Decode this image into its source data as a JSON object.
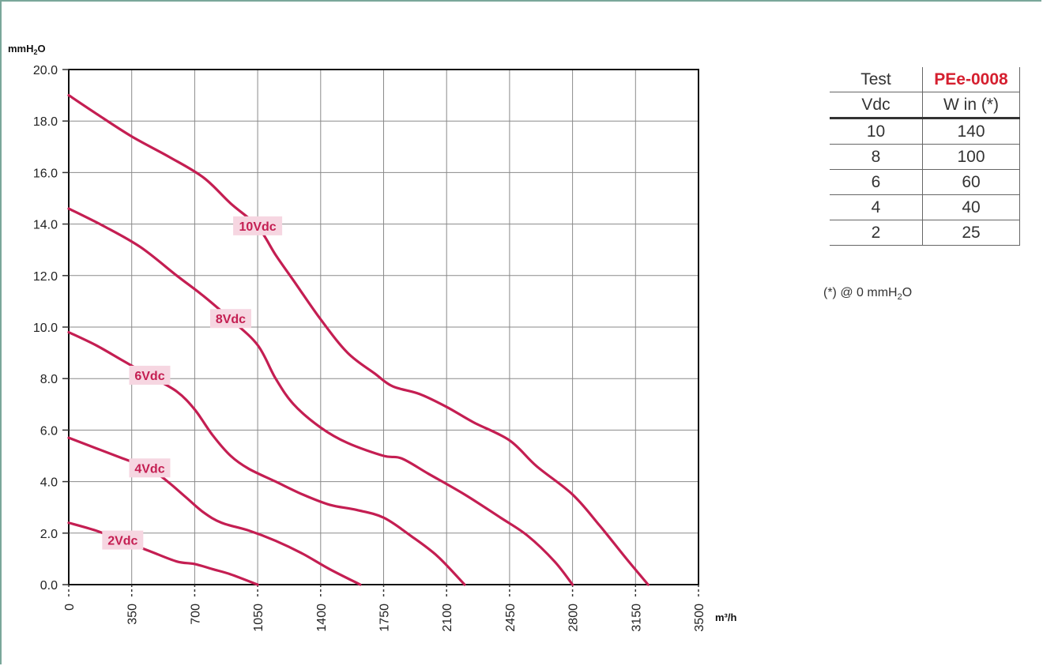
{
  "chart_data": {
    "type": "line",
    "ylabel": "mmH₂O",
    "xlabel": "m³/h",
    "xlim": [
      0,
      3500
    ],
    "ylim": [
      0,
      20
    ],
    "x_ticks": [
      "0",
      "350",
      "700",
      "1050",
      "1400",
      "1750",
      "2100",
      "2450",
      "2800",
      "3150",
      "3500"
    ],
    "y_ticks": [
      "0.0",
      "2.0",
      "4.0",
      "6.0",
      "8.0",
      "10.0",
      "12.0",
      "14.0",
      "16.0",
      "18.0",
      "20.0"
    ],
    "grid": true,
    "line_color": "#c41e52",
    "label_bg_color": "#f6d6e1",
    "series": [
      {
        "name": "10Vdc",
        "points": [
          [
            0,
            19.0
          ],
          [
            150,
            18.3
          ],
          [
            350,
            17.4
          ],
          [
            560,
            16.6
          ],
          [
            750,
            15.8
          ],
          [
            900,
            14.8
          ],
          [
            1050,
            13.9
          ],
          [
            1150,
            12.8
          ],
          [
            1250,
            11.8
          ],
          [
            1400,
            10.3
          ],
          [
            1550,
            9.0
          ],
          [
            1700,
            8.2
          ],
          [
            1800,
            7.7
          ],
          [
            1950,
            7.4
          ],
          [
            2100,
            6.9
          ],
          [
            2250,
            6.3
          ],
          [
            2450,
            5.6
          ],
          [
            2600,
            4.6
          ],
          [
            2800,
            3.5
          ],
          [
            2950,
            2.3
          ],
          [
            3100,
            1.0
          ],
          [
            3220,
            0.0
          ]
        ]
      },
      {
        "name": "8Vdc",
        "points": [
          [
            0,
            14.6
          ],
          [
            200,
            13.9
          ],
          [
            400,
            13.1
          ],
          [
            600,
            12.0
          ],
          [
            750,
            11.2
          ],
          [
            900,
            10.3
          ],
          [
            1050,
            9.3
          ],
          [
            1150,
            8.0
          ],
          [
            1250,
            7.0
          ],
          [
            1400,
            6.1
          ],
          [
            1550,
            5.5
          ],
          [
            1750,
            5.0
          ],
          [
            1850,
            4.9
          ],
          [
            2000,
            4.3
          ],
          [
            2200,
            3.5
          ],
          [
            2400,
            2.6
          ],
          [
            2550,
            1.9
          ],
          [
            2700,
            0.9
          ],
          [
            2800,
            0.0
          ]
        ]
      },
      {
        "name": "6Vdc",
        "points": [
          [
            0,
            9.8
          ],
          [
            150,
            9.3
          ],
          [
            300,
            8.7
          ],
          [
            450,
            8.1
          ],
          [
            600,
            7.5
          ],
          [
            700,
            6.8
          ],
          [
            800,
            5.8
          ],
          [
            900,
            5.0
          ],
          [
            1000,
            4.5
          ],
          [
            1150,
            4.0
          ],
          [
            1300,
            3.5
          ],
          [
            1450,
            3.1
          ],
          [
            1600,
            2.9
          ],
          [
            1750,
            2.6
          ],
          [
            1900,
            1.9
          ],
          [
            2050,
            1.1
          ],
          [
            2200,
            0.0
          ]
        ]
      },
      {
        "name": "4Vdc",
        "points": [
          [
            0,
            5.7
          ],
          [
            150,
            5.3
          ],
          [
            300,
            4.9
          ],
          [
            450,
            4.5
          ],
          [
            550,
            4.0
          ],
          [
            650,
            3.4
          ],
          [
            750,
            2.8
          ],
          [
            850,
            2.4
          ],
          [
            1000,
            2.1
          ],
          [
            1150,
            1.7
          ],
          [
            1300,
            1.2
          ],
          [
            1450,
            0.6
          ],
          [
            1620,
            0.0
          ]
        ]
      },
      {
        "name": "2Vdc",
        "points": [
          [
            0,
            2.4
          ],
          [
            150,
            2.1
          ],
          [
            300,
            1.7
          ],
          [
            450,
            1.3
          ],
          [
            600,
            0.9
          ],
          [
            700,
            0.8
          ],
          [
            800,
            0.6
          ],
          [
            900,
            0.4
          ],
          [
            1050,
            0.0
          ]
        ]
      }
    ]
  },
  "table": {
    "header": [
      "Test",
      "PEe-0008"
    ],
    "subheader": [
      "Vdc",
      "W in (*)"
    ],
    "rows": [
      [
        "10",
        "140"
      ],
      [
        "8",
        "100"
      ],
      [
        "6",
        "60"
      ],
      [
        "4",
        "40"
      ],
      [
        "2",
        "25"
      ]
    ],
    "note_prefix": "(*) @ 0 mmH",
    "note_sub": "2",
    "note_suffix": "O"
  }
}
